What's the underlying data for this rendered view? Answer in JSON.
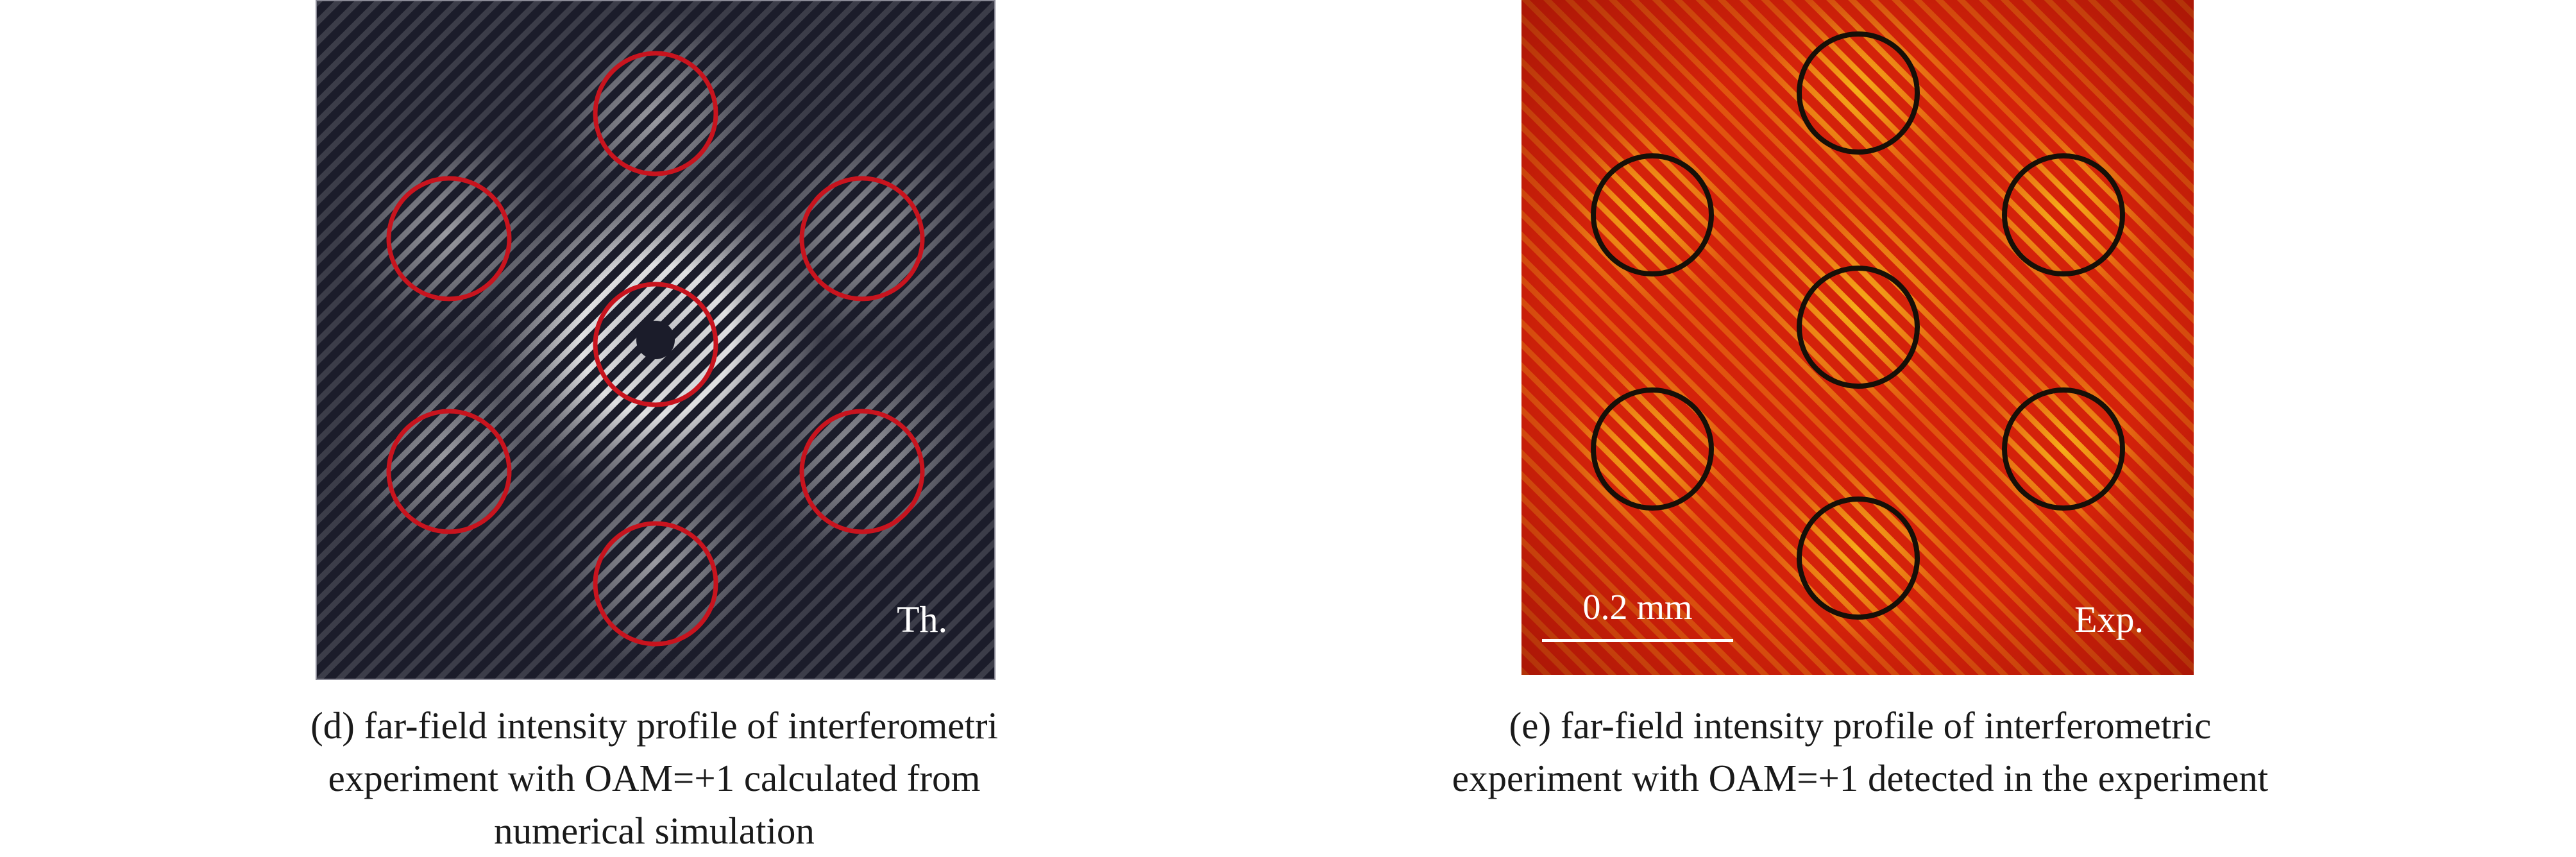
{
  "panels": [
    {
      "id": "d",
      "corner_label": "Th.",
      "caption_lines": [
        "(d) far-field intensity profile of interferometri",
        "experiment with OAM=+1 calculated from",
        "numerical simulation"
      ],
      "colors": {
        "background": "#1b1c2a",
        "fringe": "#e6e6ee",
        "circle": "#c8141e",
        "label": "#ffffff"
      }
    },
    {
      "id": "e",
      "corner_label": "Exp.",
      "scale_bar_label": "0.2 mm",
      "caption_lines": [
        "(e) far-field intensity profile of interferometric",
        "experiment with OAM=+1 detected in the experiment"
      ],
      "colors": {
        "background": "#d4220a",
        "fringe": "#ffd21e",
        "circle": "#161008",
        "label": "#ffffff"
      }
    }
  ]
}
